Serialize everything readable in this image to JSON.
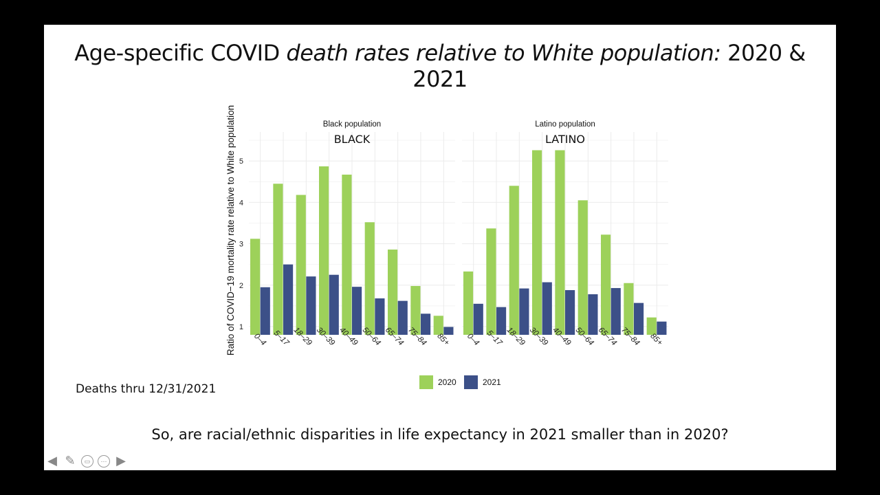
{
  "slide": {
    "title_plain_1": "Age-specific COVID ",
    "title_italic": "death rates relative to White population:",
    "title_plain_2": " 2020 & 2021",
    "note": "Deaths thru 12/31/2021",
    "question": "So, are racial/ethnic disparities in life expectancy in 2021 smaller than in 2020?"
  },
  "toolbar": {
    "icons": [
      "arrow-left-icon",
      "pen-icon",
      "screen-icon",
      "more-icon",
      "arrow-right-icon"
    ]
  },
  "chart_data": {
    "type": "bar",
    "ylabel": "Ratio of COVID−19 mortality rate relative to White population",
    "ylim": [
      0.8,
      5.7
    ],
    "yticks": [
      1,
      2,
      3,
      4,
      5
    ],
    "grid": true,
    "legend_position": "bottom",
    "colors": {
      "2020": "#9dd15a",
      "2021": "#3c5088"
    },
    "categories": [
      "0–4",
      "5–17",
      "18–29",
      "30–39",
      "40–49",
      "50–64",
      "65–74",
      "75–84",
      "85+"
    ],
    "legend": [
      "2020",
      "2021"
    ],
    "panels": [
      {
        "strip": "Black population",
        "label": "BLACK",
        "series": [
          {
            "name": "2020",
            "values": [
              3.12,
              4.45,
              4.18,
              4.87,
              4.67,
              3.52,
              2.86,
              1.98,
              1.26
            ]
          },
          {
            "name": "2021",
            "values": [
              1.95,
              2.5,
              2.21,
              2.25,
              1.96,
              1.68,
              1.62,
              1.31,
              0.99
            ]
          }
        ]
      },
      {
        "strip": "Latino population",
        "label": "LATINO",
        "series": [
          {
            "name": "2020",
            "values": [
              2.33,
              3.37,
              4.4,
              5.26,
              5.26,
              4.05,
              3.22,
              2.05,
              1.22
            ]
          },
          {
            "name": "2021",
            "values": [
              1.55,
              1.47,
              1.92,
              2.07,
              1.88,
              1.78,
              1.93,
              1.57,
              1.12
            ]
          }
        ]
      }
    ]
  }
}
